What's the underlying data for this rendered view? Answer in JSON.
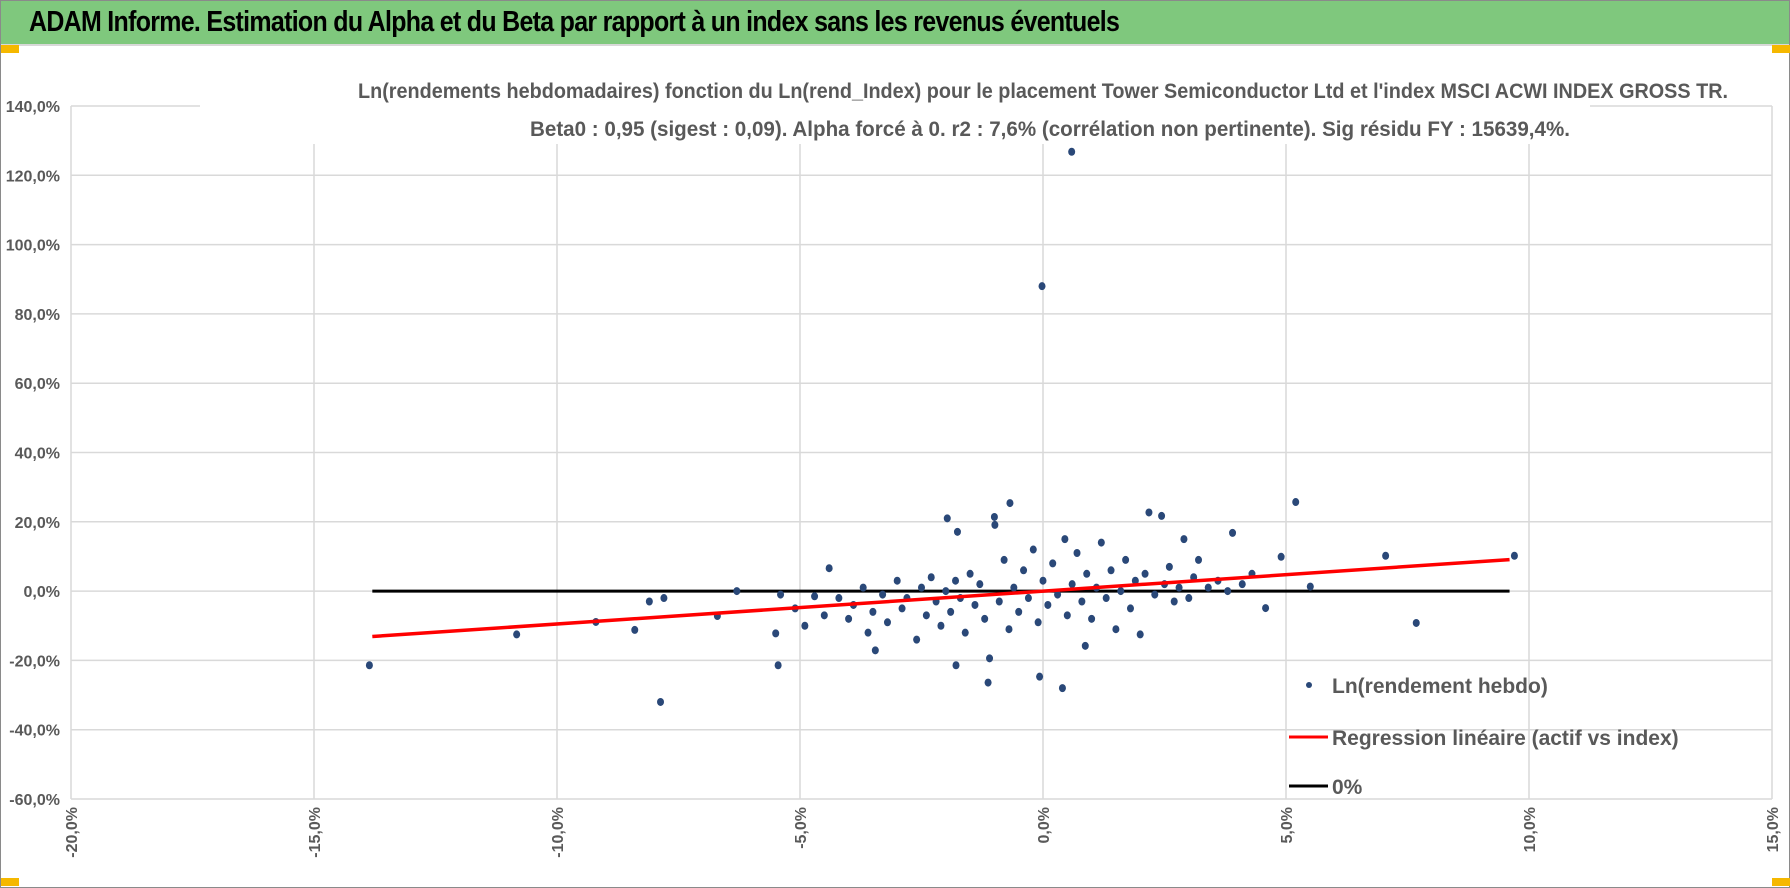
{
  "header": {
    "title": "ADAM Informe. Estimation du Alpha et du Beta par rapport à un index sans les revenus éventuels"
  },
  "colors": {
    "header_bg": "#7fc87d",
    "points": "#2a4878",
    "regression": "#ff0000",
    "zero_line": "#000000",
    "grid": "#d9d9d9"
  },
  "chart_data": {
    "type": "scatter",
    "title": "Ln(rendements hebdomadaires) fonction du Ln(rend_Index) pour le placement Tower Semiconductor Ltd et l'index MSCI ACWI INDEX GROSS TR.",
    "subtitle": "Beta0 : 0,95 (sigest : 0,09).  Alpha forcé à 0. r2 : 7,6% (corrélation non pertinente). Sig résidu FY : 15639,4%.",
    "xlabel": "",
    "ylabel": "",
    "xlim": [
      -20,
      15
    ],
    "ylim": [
      -60,
      140
    ],
    "x_ticks": [
      "-20,0%",
      "-15,0%",
      "-10,0%",
      "-5,0%",
      "0,0%",
      "5,0%",
      "10,0%",
      "15,0%"
    ],
    "y_ticks": [
      "140,0%",
      "120,0%",
      "100,0%",
      "80,0%",
      "60,0%",
      "40,0%",
      "20,0%",
      "0,0%",
      "-20,0%",
      "-40,0%",
      "-60,0%"
    ],
    "grid": true,
    "legend_position": "bottom-right",
    "series": [
      {
        "name": "Ln(rendement hebdo)",
        "kind": "points",
        "points": [
          [
            -13.86,
            -21.4
          ],
          [
            -10.83,
            -12.5
          ],
          [
            -9.2,
            -8.9
          ],
          [
            -8.4,
            -11.2
          ],
          [
            -8.1,
            -3
          ],
          [
            -7.87,
            -32
          ],
          [
            -7.8,
            -2
          ],
          [
            -6.7,
            -7.2
          ],
          [
            -6.3,
            0
          ],
          [
            -5.5,
            -12.2
          ],
          [
            -5.45,
            -21.4
          ],
          [
            -5.4,
            -1
          ],
          [
            -5.1,
            -5
          ],
          [
            -4.9,
            -10
          ],
          [
            -4.7,
            -1.5
          ],
          [
            -4.5,
            -7
          ],
          [
            -4.4,
            6.6
          ],
          [
            -4.2,
            -2
          ],
          [
            -4.0,
            -8
          ],
          [
            -3.9,
            -4
          ],
          [
            -3.7,
            1
          ],
          [
            -3.6,
            -12
          ],
          [
            -3.5,
            -6
          ],
          [
            -3.45,
            -17.1
          ],
          [
            -3.3,
            -1
          ],
          [
            -3.2,
            -9
          ],
          [
            -3.0,
            3
          ],
          [
            -2.9,
            -5
          ],
          [
            -2.8,
            -2
          ],
          [
            -2.6,
            -14
          ],
          [
            -2.5,
            1
          ],
          [
            -2.4,
            -7
          ],
          [
            -2.3,
            4
          ],
          [
            -2.2,
            -3
          ],
          [
            -2.1,
            -10
          ],
          [
            -2.0,
            0
          ],
          [
            -1.97,
            21
          ],
          [
            -1.9,
            -6
          ],
          [
            -1.8,
            3
          ],
          [
            -1.79,
            -21.4
          ],
          [
            -1.76,
            17.1
          ],
          [
            -1.7,
            -2
          ],
          [
            -1.6,
            -12
          ],
          [
            -1.5,
            5
          ],
          [
            -1.4,
            -4
          ],
          [
            -1.3,
            2
          ],
          [
            -1.2,
            -8
          ],
          [
            -1.13,
            -26.4
          ],
          [
            -1.1,
            -19.4
          ],
          [
            -1.0,
            21.4
          ],
          [
            -0.99,
            19.1
          ],
          [
            -0.9,
            -3
          ],
          [
            -0.8,
            9
          ],
          [
            -0.7,
            -11
          ],
          [
            -0.68,
            25.4
          ],
          [
            -0.6,
            1
          ],
          [
            -0.5,
            -6
          ],
          [
            -0.4,
            6
          ],
          [
            -0.3,
            -2
          ],
          [
            -0.2,
            12
          ],
          [
            -0.1,
            -9
          ],
          [
            -0.07,
            -24.7
          ],
          [
            -0.02,
            88
          ],
          [
            0.0,
            3
          ],
          [
            0.1,
            -4
          ],
          [
            0.2,
            8
          ],
          [
            0.3,
            -1
          ],
          [
            0.4,
            -28
          ],
          [
            0.45,
            15
          ],
          [
            0.5,
            -7
          ],
          [
            0.59,
            126.8
          ],
          [
            0.6,
            2
          ],
          [
            0.7,
            11
          ],
          [
            0.8,
            -3
          ],
          [
            0.87,
            -15.8
          ],
          [
            0.9,
            5
          ],
          [
            1.0,
            -8
          ],
          [
            1.1,
            1
          ],
          [
            1.2,
            14
          ],
          [
            1.3,
            -2
          ],
          [
            1.4,
            6
          ],
          [
            1.5,
            -11
          ],
          [
            1.6,
            0
          ],
          [
            1.7,
            9
          ],
          [
            1.8,
            -5
          ],
          [
            1.9,
            3
          ],
          [
            2.0,
            -12.5
          ],
          [
            2.1,
            5
          ],
          [
            2.18,
            22.7
          ],
          [
            2.3,
            -1
          ],
          [
            2.44,
            21.7
          ],
          [
            2.5,
            2
          ],
          [
            2.6,
            7
          ],
          [
            2.7,
            -3
          ],
          [
            2.8,
            1
          ],
          [
            2.9,
            15
          ],
          [
            3.0,
            -2
          ],
          [
            3.1,
            4
          ],
          [
            3.2,
            9
          ],
          [
            3.4,
            1
          ],
          [
            3.6,
            3
          ],
          [
            3.8,
            0
          ],
          [
            3.9,
            16.8
          ],
          [
            4.1,
            2
          ],
          [
            4.3,
            5
          ],
          [
            4.58,
            -4.9
          ],
          [
            4.9,
            9.9
          ],
          [
            5.2,
            25.7
          ],
          [
            5.5,
            1.3
          ],
          [
            7.05,
            10.2
          ],
          [
            7.68,
            -9.2
          ],
          [
            9.7,
            10.2
          ]
        ]
      },
      {
        "name": "Regression linéaire (actif vs index)",
        "kind": "line",
        "points": [
          [
            -13.8,
            -13.1
          ],
          [
            9.6,
            9.1
          ]
        ]
      },
      {
        "name": "0%",
        "kind": "line",
        "points": [
          [
            -13.8,
            0
          ],
          [
            9.6,
            0
          ]
        ]
      }
    ]
  }
}
